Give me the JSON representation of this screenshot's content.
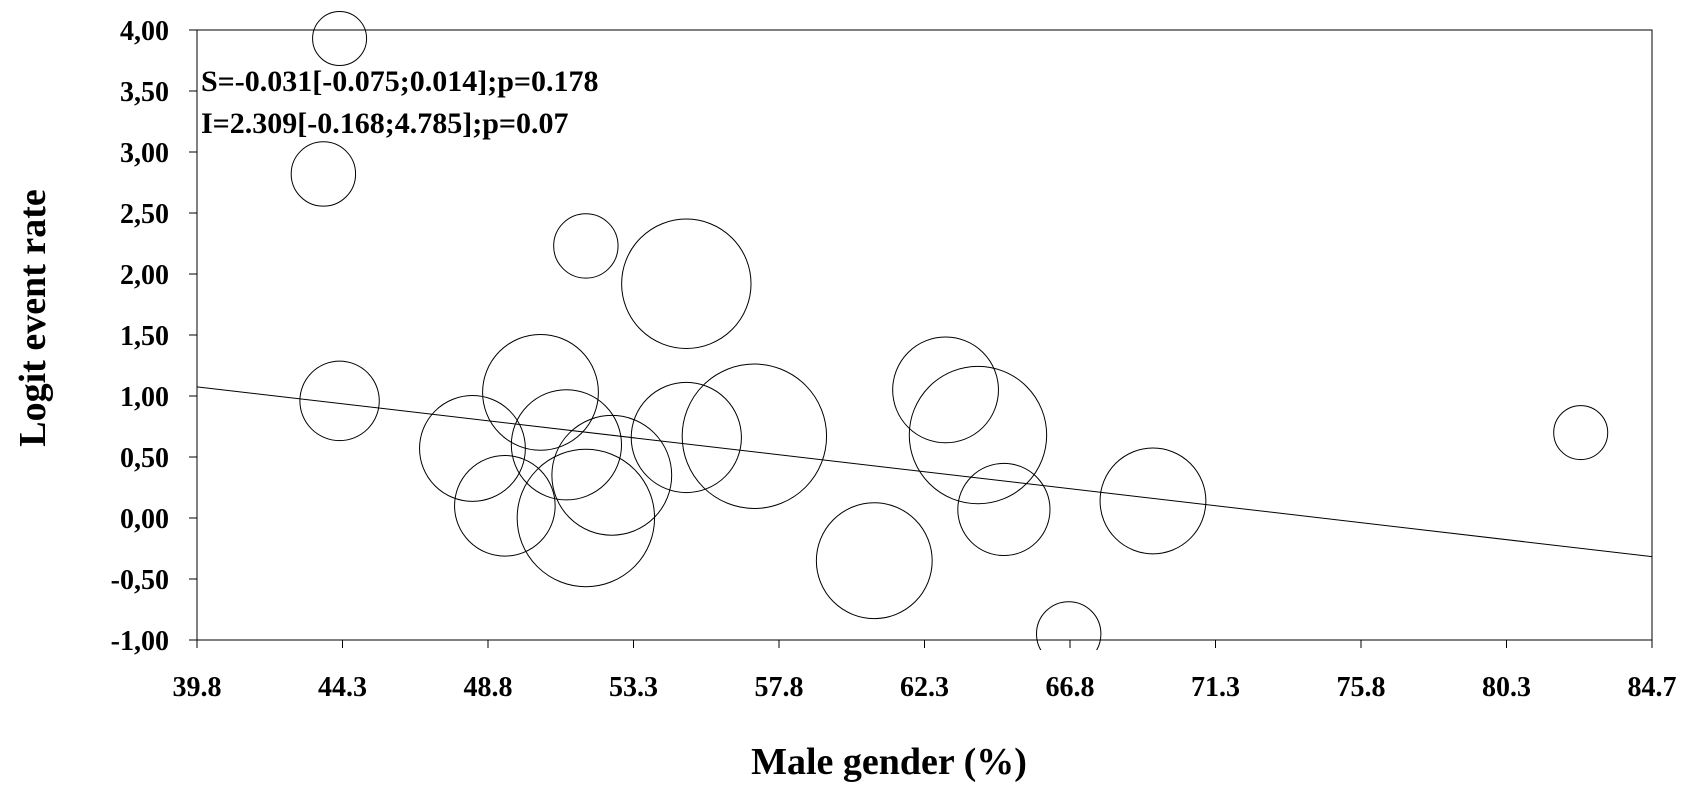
{
  "chart_data": {
    "type": "scatter",
    "subtype": "bubble meta-regression",
    "xlabel": "Male gender (%)",
    "ylabel": "Logit event rate",
    "xlim": [
      39.8,
      84.7
    ],
    "ylim": [
      -1.0,
      4.0
    ],
    "x_ticks": [
      "39.8",
      "44.3",
      "48.8",
      "53.3",
      "57.8",
      "62.3",
      "66.8",
      "71.3",
      "75.8",
      "80.3",
      "84.7"
    ],
    "y_ticks": [
      "-1,00",
      "-0,50",
      "0,00",
      "0,50",
      "1,00",
      "1,50",
      "2,00",
      "2,50",
      "3,00",
      "3,50",
      "4,00"
    ],
    "annotations": [
      "S=-0.031[-0.075;0.014];p=0.178",
      "I=2.309[-0.168;4.785];p=0.07"
    ],
    "regression_line": {
      "slope": -0.031,
      "intercept": 2.309
    },
    "points": [
      {
        "x": 44.2,
        "y": 3.93,
        "weight": 1.0
      },
      {
        "x": 43.7,
        "y": 2.82,
        "weight": 1.42
      },
      {
        "x": 44.2,
        "y": 0.96,
        "weight": 2.16
      },
      {
        "x": 51.8,
        "y": 2.23,
        "weight": 1.42
      },
      {
        "x": 54.9,
        "y": 1.92,
        "weight": 5.74
      },
      {
        "x": 50.4,
        "y": 1.03,
        "weight": 4.6
      },
      {
        "x": 48.3,
        "y": 0.57,
        "weight": 3.84
      },
      {
        "x": 51.2,
        "y": 0.6,
        "weight": 4.16
      },
      {
        "x": 49.3,
        "y": 0.1,
        "weight": 3.47
      },
      {
        "x": 52.6,
        "y": 0.35,
        "weight": 4.93
      },
      {
        "x": 51.8,
        "y": 0.0,
        "weight": 6.48
      },
      {
        "x": 54.9,
        "y": 0.66,
        "weight": 4.16
      },
      {
        "x": 57.0,
        "y": 0.67,
        "weight": 7.16
      },
      {
        "x": 60.7,
        "y": -0.35,
        "weight": 4.6
      },
      {
        "x": 62.9,
        "y": 1.05,
        "weight": 3.84
      },
      {
        "x": 63.9,
        "y": 0.68,
        "weight": 6.48
      },
      {
        "x": 64.7,
        "y": 0.07,
        "weight": 2.92
      },
      {
        "x": 66.7,
        "y": -0.95,
        "weight": 1.42
      },
      {
        "x": 69.3,
        "y": 0.14,
        "weight": 3.84
      },
      {
        "x": 82.5,
        "y": 0.7,
        "weight": 1.0
      }
    ]
  }
}
